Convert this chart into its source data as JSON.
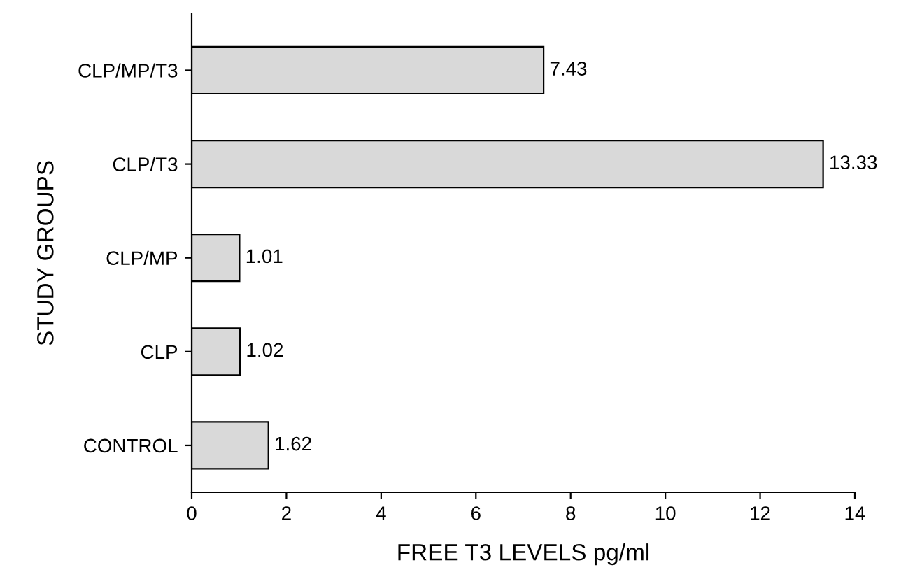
{
  "chart_data": {
    "type": "bar",
    "orientation": "horizontal",
    "xlabel": "FREE T3 LEVELS pg/ml",
    "ylabel": "STUDY GROUPS",
    "categories": [
      "CLP/MP/T3",
      "CLP/T3",
      "CLP/MP",
      "CLP",
      "CONTROL"
    ],
    "values": [
      7.43,
      13.33,
      1.01,
      1.02,
      1.62
    ],
    "color": "#d9d9d9",
    "xlim": [
      0,
      14
    ],
    "xticks": [
      0,
      2,
      4,
      6,
      8,
      10,
      12,
      14
    ],
    "data_labels": true,
    "grid": false,
    "legend": false
  }
}
